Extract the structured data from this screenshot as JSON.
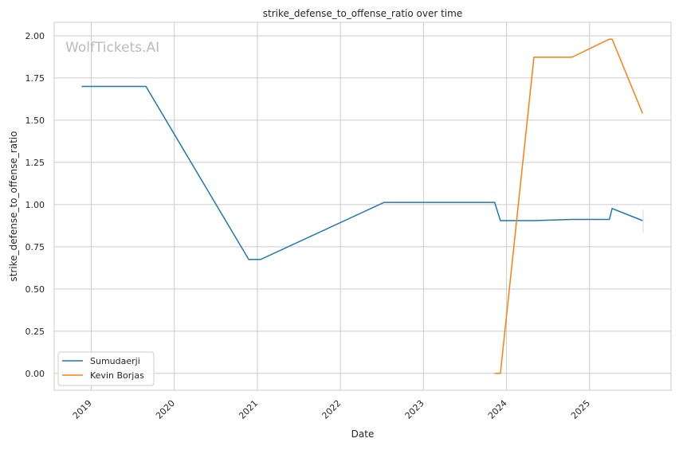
{
  "chart_data": {
    "type": "line",
    "title": "strike_defense_to_offense_ratio over time",
    "xlabel": "Date",
    "ylabel": "strike_defense_to_offense_ratio",
    "watermark": "WolfTickets.AI",
    "xlim": [
      "2018-07-22",
      "2025-12-25"
    ],
    "ylim": [
      -0.1,
      2.08
    ],
    "x_ticks": [
      "2019",
      "2020",
      "2021",
      "2022",
      "2023",
      "2024",
      "2025"
    ],
    "y_ticks": [
      "0.00",
      "0.25",
      "0.50",
      "0.75",
      "1.00",
      "1.25",
      "1.50",
      "1.75",
      "2.00"
    ],
    "grid": true,
    "legend_position": "lower-left",
    "series": [
      {
        "name": "Sumudaerji",
        "color": "#1f77b4",
        "x": [
          "2018-11-20",
          "2019-08-29",
          "2020-11-24",
          "2021-01-15",
          "2022-07-12",
          "2023-11-10",
          "2023-12-05",
          "2024-05-01",
          "2024-10-15",
          "2025-03-29",
          "2025-04-10",
          "2025-08-22"
        ],
        "y": [
          1.7,
          1.7,
          0.675,
          0.675,
          1.013,
          1.013,
          0.905,
          0.905,
          0.912,
          0.912,
          0.977,
          0.905
        ]
      },
      {
        "name": "Kevin Borjas",
        "color": "#ff7f0e",
        "x": [
          "2023-11-10",
          "2023-12-05",
          "2024-05-01",
          "2024-10-15",
          "2025-03-29",
          "2025-04-10",
          "2025-08-22"
        ],
        "y": [
          0.0,
          0.0,
          1.873,
          1.873,
          1.98,
          1.98,
          1.54
        ]
      }
    ]
  }
}
